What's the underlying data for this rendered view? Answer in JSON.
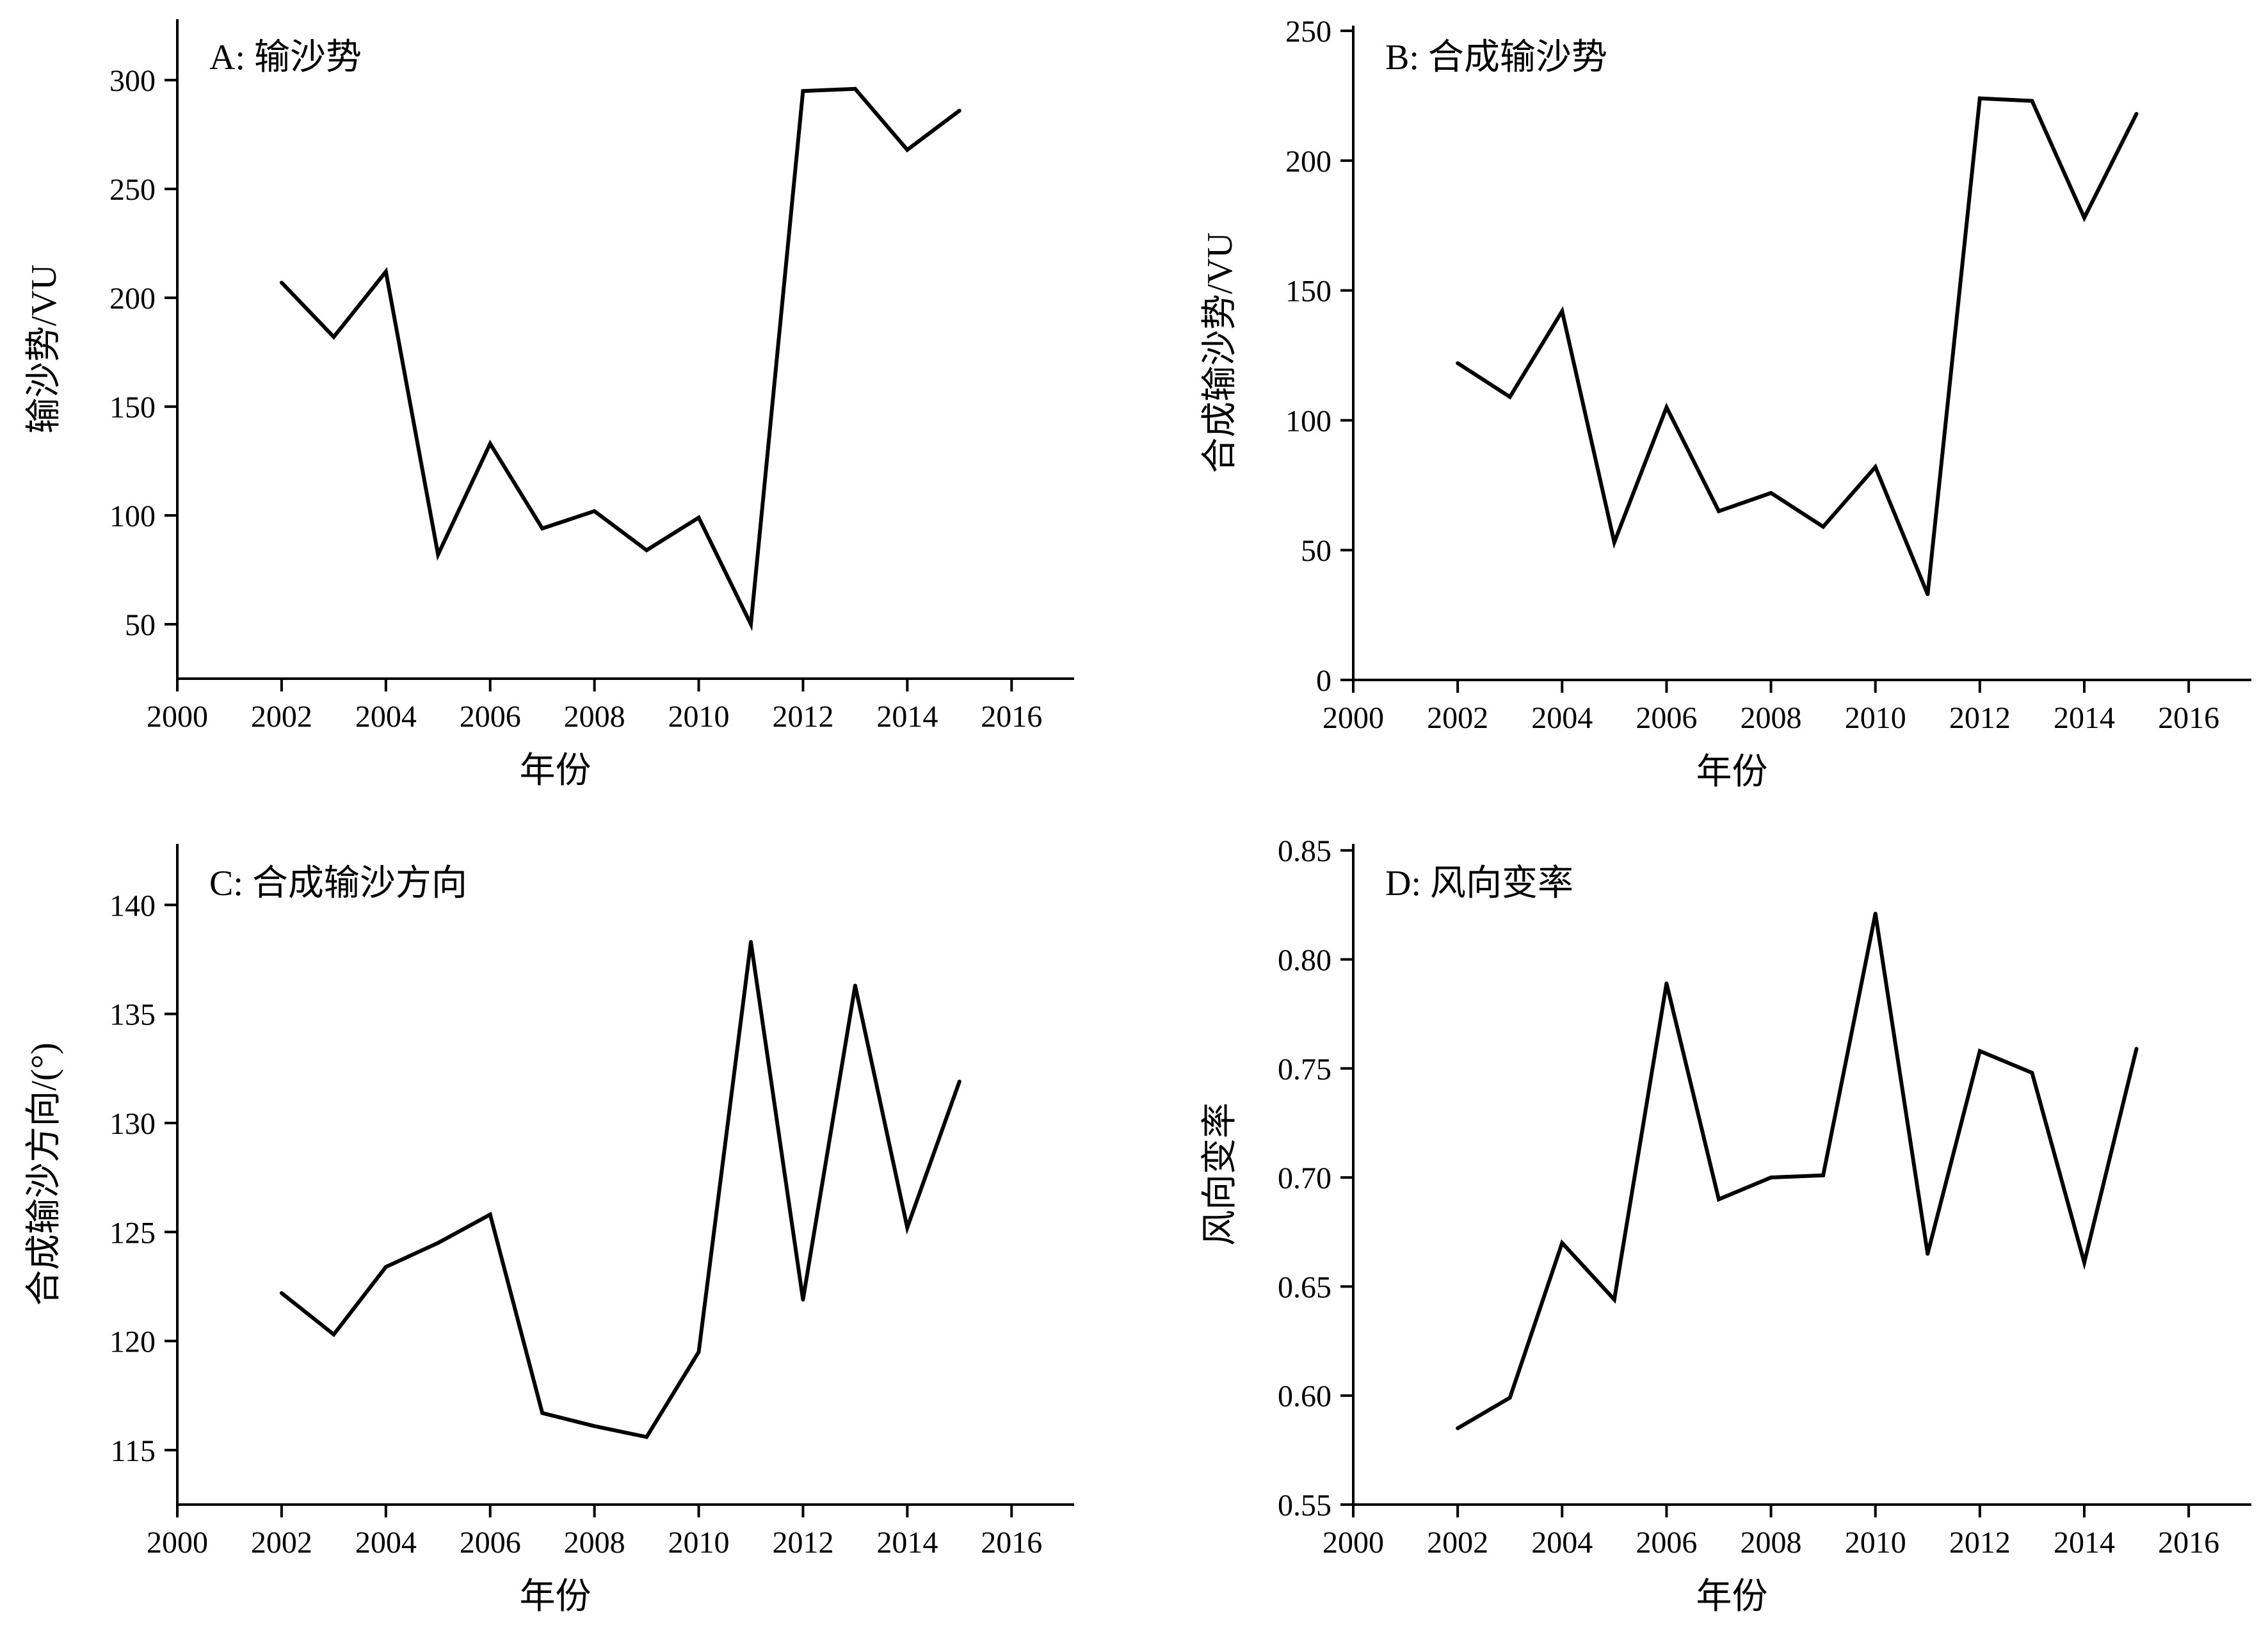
{
  "chart_data": [
    {
      "type": "line",
      "panel": "A",
      "title": "A: 输沙势",
      "xlabel": "年份",
      "ylabel": "输沙势/VU",
      "xlim": [
        2000,
        2017.2
      ],
      "ylim": [
        25,
        328
      ],
      "xticks": [
        2000,
        2002,
        2004,
        2006,
        2008,
        2010,
        2012,
        2014,
        2016
      ],
      "yticks": [
        50,
        100,
        150,
        200,
        250,
        300
      ],
      "ytick_labels": [
        "50",
        "100",
        "150",
        "200",
        "250",
        "300"
      ],
      "x": [
        2002,
        2003,
        2004,
        2005,
        2006,
        2007,
        2008,
        2009,
        2010,
        2011,
        2012,
        2013,
        2014,
        2015
      ],
      "values": [
        207,
        182,
        212,
        82,
        133,
        94,
        102,
        84,
        99,
        50,
        295,
        296,
        268,
        286
      ],
      "color": "#000000"
    },
    {
      "type": "line",
      "panel": "B",
      "title": "B: 合成输沙势",
      "xlabel": "年份",
      "ylabel": "合成输沙势/VU",
      "xlim": [
        2000,
        2017.2
      ],
      "ylim": [
        0,
        252
      ],
      "xticks": [
        2000,
        2002,
        2004,
        2006,
        2008,
        2010,
        2012,
        2014,
        2016
      ],
      "yticks": [
        0,
        50,
        100,
        150,
        200,
        250
      ],
      "ytick_labels": [
        "0",
        "50",
        "100",
        "150",
        "200",
        "250"
      ],
      "x": [
        2002,
        2003,
        2004,
        2005,
        2006,
        2007,
        2008,
        2009,
        2010,
        2011,
        2012,
        2013,
        2014,
        2015
      ],
      "values": [
        122,
        109,
        142,
        53,
        105,
        65,
        72,
        59,
        82,
        33,
        224,
        223,
        178,
        218
      ],
      "color": "#000000"
    },
    {
      "type": "line",
      "panel": "C",
      "title": "C: 合成输沙方向",
      "xlabel": "年份",
      "ylabel": "合成输沙方向/(°)",
      "xlim": [
        2000,
        2017.2
      ],
      "ylim": [
        112.5,
        142.8
      ],
      "xticks": [
        2000,
        2002,
        2004,
        2006,
        2008,
        2010,
        2012,
        2014,
        2016
      ],
      "yticks": [
        115,
        120,
        125,
        130,
        135,
        140
      ],
      "ytick_labels": [
        "115",
        "120",
        "125",
        "130",
        "135",
        "140"
      ],
      "x": [
        2002,
        2003,
        2004,
        2005,
        2006,
        2007,
        2008,
        2009,
        2010,
        2011,
        2012,
        2013,
        2014,
        2015
      ],
      "values": [
        122.2,
        120.3,
        123.4,
        124.5,
        125.8,
        116.7,
        116.1,
        115.6,
        119.5,
        138.3,
        121.9,
        136.3,
        125.2,
        131.9
      ],
      "color": "#000000"
    },
    {
      "type": "line",
      "panel": "D",
      "title": "D: 风向变率",
      "xlabel": "年份",
      "ylabel": "风向变率",
      "xlim": [
        2000,
        2017.2
      ],
      "ylim": [
        0.55,
        0.853
      ],
      "xticks": [
        2000,
        2002,
        2004,
        2006,
        2008,
        2010,
        2012,
        2014,
        2016
      ],
      "yticks": [
        0.55,
        0.6,
        0.65,
        0.7,
        0.75,
        0.8,
        0.85
      ],
      "ytick_labels": [
        "0.55",
        "0.60",
        "0.65",
        "0.70",
        "0.75",
        "0.80",
        "0.85"
      ],
      "x": [
        2002,
        2003,
        2004,
        2005,
        2006,
        2007,
        2008,
        2009,
        2010,
        2011,
        2012,
        2013,
        2014,
        2015
      ],
      "values": [
        0.585,
        0.599,
        0.67,
        0.644,
        0.789,
        0.69,
        0.7,
        0.701,
        0.821,
        0.665,
        0.758,
        0.748,
        0.661,
        0.759
      ],
      "color": "#000000"
    }
  ]
}
